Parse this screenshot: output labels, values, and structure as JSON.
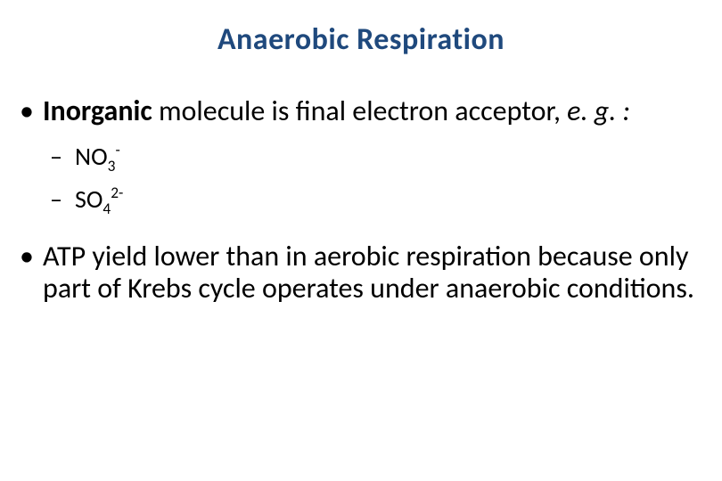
{
  "title": "Anaerobic Respiration",
  "bullet1": {
    "bold_word": "Inorganic",
    "rest": " molecule is final electron acceptor, ",
    "italic": "e. g. :"
  },
  "sub1": {
    "prefix": "NO",
    "sub": "3",
    "sup": "-"
  },
  "sub2": {
    "prefix": "SO",
    "sub": "4",
    "sup": "2-"
  },
  "bullet2": "ATP yield lower than in aerobic respiration because only part of Krebs cycle operates under anaerobic conditions.",
  "colors": {
    "title_color": "#1f497d",
    "text_color": "#000000",
    "background_color": "#ffffff"
  },
  "typography": {
    "title_fontsize": 34,
    "bullet_fontsize": 32,
    "sub_fontsize": 28,
    "font_family": "Calibri"
  }
}
